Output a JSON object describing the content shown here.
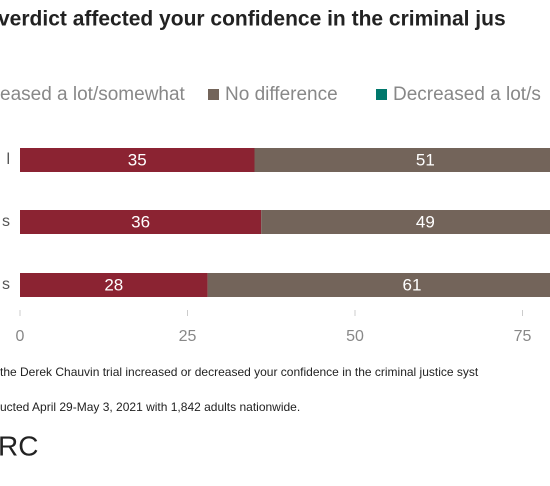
{
  "chart_data": {
    "type": "hbar-stacked",
    "title": "verdict affected your confidence in the criminal jus",
    "categories": [
      "l",
      "s",
      "s"
    ],
    "series": [
      {
        "name": "eased a lot/somewhat",
        "color": "#8b2332",
        "values": [
          35,
          36,
          28
        ]
      },
      {
        "name": "No difference",
        "color": "#73645a",
        "values": [
          51,
          49,
          61
        ]
      },
      {
        "name": "Decreased a lot/s",
        "color": "#00786c",
        "values": [
          null,
          null,
          null
        ]
      }
    ],
    "xlim": [
      0,
      100
    ],
    "xticks": [
      0,
      25,
      50,
      75
    ],
    "notes": [
      "the Derek Chauvin trial increased or decreased your confidence in the criminal justice syst",
      "ucted April 29-May 3, 2021 with 1,842 adults nationwide."
    ],
    "logo": "RC"
  }
}
